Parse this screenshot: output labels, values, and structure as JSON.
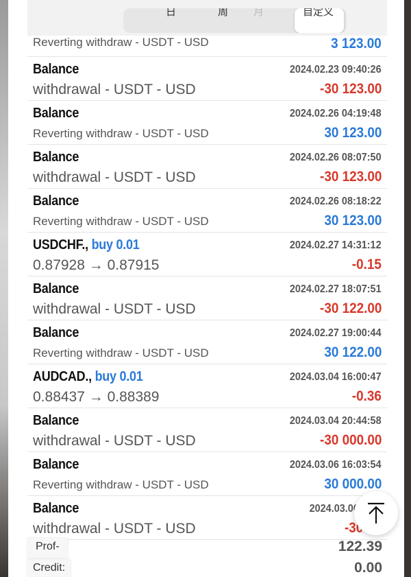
{
  "tabs": [
    "日",
    "周",
    "月",
    "自定义"
  ],
  "first_row": {
    "subtitle": "Reverting withdraw - USDT - USD",
    "amount": "3 123.00",
    "sign": "pos"
  },
  "rows": [
    {
      "title": "Balance",
      "date": "2024.02.23 09:40:26",
      "subtitle": "withdrawal - USDT - USD",
      "amount": "-30 123.00",
      "sign": "neg"
    },
    {
      "title": "Balance",
      "date": "2024.02.26 04:19:48",
      "subtitle": "Reverting withdraw - USDT - USD",
      "amount": "30 123.00",
      "sign": "pos"
    },
    {
      "title": "Balance",
      "date": "2024.02.26 08:07:50",
      "subtitle": "withdrawal - USDT - USD",
      "amount": "-30 123.00",
      "sign": "neg"
    },
    {
      "title": "Balance",
      "date": "2024.02.26 08:18:22",
      "subtitle": "Reverting withdraw - USDT - USD",
      "amount": "30 123.00",
      "sign": "pos"
    },
    {
      "title": "USDCHF.,",
      "action": "buy 0.01",
      "date": "2024.02.27 14:31:12",
      "subtitle": "0.87928 → 0.87915",
      "amount": "-0.15",
      "sign": "neg"
    },
    {
      "title": "Balance",
      "date": "2024.02.27 18:07:51",
      "subtitle": "withdrawal - USDT - USD",
      "amount": "-30 122.00",
      "sign": "neg"
    },
    {
      "title": "Balance",
      "date": "2024.02.27 19:00:44",
      "subtitle": "Reverting withdraw - USDT - USD",
      "amount": "30 122.00",
      "sign": "pos"
    },
    {
      "title": "AUDCAD.,",
      "action": "buy 0.01",
      "date": "2024.03.04 16:00:47",
      "subtitle": "0.88437 → 0.88389",
      "amount": "-0.36",
      "sign": "neg"
    },
    {
      "title": "Balance",
      "date": "2024.03.04 20:44:58",
      "subtitle": "withdrawal - USDT - USD",
      "amount": "-30 000.00",
      "sign": "neg"
    },
    {
      "title": "Balance",
      "date": "2024.03.06 16:03:54",
      "subtitle": "Reverting withdraw - USDT - USD",
      "amount": "30 000.00",
      "sign": "pos"
    },
    {
      "title": "Balance",
      "date": "2024.03.06 16:0",
      "subtitle": "withdrawal - USDT - USD",
      "amount": "-30 12",
      "sign": "neg"
    }
  ],
  "summary": {
    "profit_label": "Prof-",
    "profit_value": "122.39",
    "credit_label": "Credit:",
    "credit_value": "0.00"
  },
  "scroll_top_icon": "arrow-up-to-top-icon"
}
